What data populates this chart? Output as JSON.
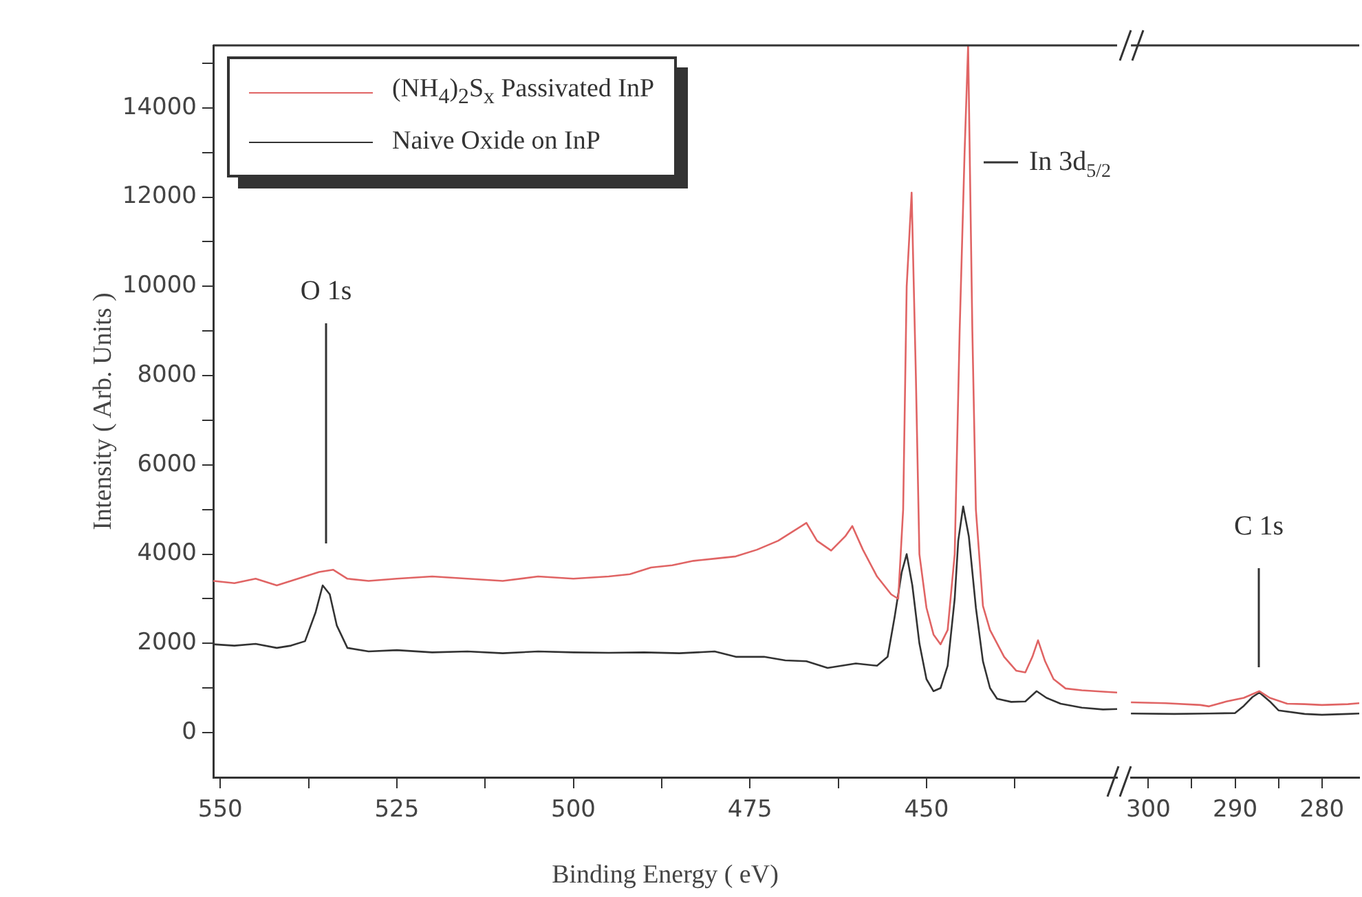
{
  "chart_data": [
    {
      "type": "line",
      "xlabel": "Binding Energy ( eV)",
      "ylabel": "Intensity ( Arb. Units )",
      "legend": "top left",
      "grid": false,
      "xlim": [
        551,
        423
      ],
      "xticks": [
        550,
        {
          "value": 537.5,
          "label": null
        },
        525,
        {
          "value": 512.5,
          "label": null
        },
        500,
        {
          "value": 487.5,
          "label": null
        },
        475,
        {
          "value": 462.5,
          "label": null
        },
        450,
        {
          "value": 437.5,
          "label": null
        }
      ],
      "ylim": [
        -1000,
        15400
      ],
      "yticks": [
        0,
        {
          "value": 1000,
          "label": null
        },
        2000,
        {
          "value": 3000,
          "label": null
        },
        4000,
        {
          "value": 5000,
          "label": null
        },
        6000,
        {
          "value": 7000,
          "label": null
        },
        8000,
        {
          "value": 9000,
          "label": null
        },
        10000,
        {
          "value": 11000,
          "label": null
        },
        12000,
        {
          "value": 13000,
          "label": null
        },
        14000,
        {
          "value": 15000,
          "label": null
        }
      ],
      "annotations": [
        "O 1s",
        "In 3d$_{5/2}$"
      ],
      "series": [
        {
          "name": "(NH$_{4}$)$_{2}$S$_{x}$ Passivated InP",
          "color": "#e06464",
          "x": [
            551,
            548,
            545,
            542,
            540,
            538,
            536,
            534,
            532,
            529,
            525,
            520,
            515,
            510,
            505,
            500,
            495,
            492,
            489,
            486,
            483,
            480,
            477,
            474,
            471,
            469,
            467,
            465.5,
            463.5,
            461.5,
            460.5,
            459,
            457,
            455,
            454,
            453.3,
            452.8,
            452.1,
            451.5,
            451,
            450,
            449,
            448,
            447,
            446,
            445.3,
            444.6,
            444.1,
            443.5,
            443,
            442,
            441,
            439,
            437.3,
            436,
            435,
            434.2,
            433.2,
            432,
            430.3,
            428,
            425,
            423
          ],
          "values": [
            3400,
            3350,
            3450,
            3300,
            3400,
            3500,
            3600,
            3650,
            3450,
            3400,
            3450,
            3500,
            3450,
            3400,
            3500,
            3450,
            3500,
            3550,
            3700,
            3750,
            3850,
            3900,
            3950,
            4100,
            4300,
            4500,
            4700,
            4300,
            4080,
            4400,
            4630,
            4100,
            3500,
            3100,
            3000,
            5000,
            10000,
            12100,
            8000,
            4000,
            2800,
            2200,
            1980,
            2300,
            4000,
            9000,
            13000,
            15400,
            9000,
            5000,
            2840,
            2300,
            1700,
            1390,
            1350,
            1700,
            2070,
            1600,
            1200,
            990,
            950,
            920,
            900
          ]
        },
        {
          "name": "Naive Oxide on InP",
          "color": "#333333",
          "x": [
            551,
            548,
            545,
            542,
            540,
            538,
            536.5,
            535.5,
            534.5,
            533.5,
            532,
            529,
            525,
            520,
            515,
            510,
            505,
            500,
            495,
            490,
            485,
            480,
            477,
            473,
            470,
            467,
            464,
            460,
            457,
            455.5,
            454.5,
            453.5,
            452.8,
            452,
            451,
            450,
            449,
            448,
            447,
            446,
            445.5,
            444.8,
            444,
            443,
            442,
            441,
            440,
            438,
            436,
            434.4,
            433,
            431,
            428,
            425,
            423
          ],
          "values": [
            1980,
            1950,
            1990,
            1900,
            1950,
            2050,
            2700,
            3300,
            3100,
            2400,
            1900,
            1820,
            1850,
            1800,
            1820,
            1780,
            1820,
            1800,
            1790,
            1800,
            1780,
            1820,
            1700,
            1700,
            1620,
            1600,
            1450,
            1550,
            1500,
            1700,
            2600,
            3600,
            4000,
            3300,
            2000,
            1200,
            930,
            1000,
            1500,
            3000,
            4300,
            5070,
            4400,
            2800,
            1600,
            1000,
            760,
            690,
            700,
            930,
            780,
            650,
            560,
            520,
            530
          ]
        }
      ]
    },
    {
      "type": "line",
      "tick_labels": "x",
      "grid": false,
      "xlim": [
        302,
        275.7
      ],
      "xticks": [
        300,
        {
          "value": 295,
          "label": null
        },
        290,
        {
          "value": 285,
          "label": null
        },
        280
      ],
      "ylim": [
        -1000,
        15400
      ],
      "annotations": [
        "C 1s"
      ],
      "series": [
        {
          "color": "#e06464",
          "x": [
            302,
            298,
            294,
            293,
            291,
            289,
            287.2,
            286,
            284,
            282,
            280,
            277,
            275.7
          ],
          "values": [
            680,
            660,
            620,
            590,
            700,
            780,
            930,
            780,
            650,
            640,
            620,
            640,
            660
          ]
        },
        {
          "color": "#333333",
          "x": [
            302,
            297,
            293,
            290,
            289,
            288,
            287.2,
            286,
            285,
            282,
            280,
            277,
            275.7
          ],
          "values": [
            430,
            420,
            430,
            440,
            600,
            800,
            900,
            700,
            500,
            420,
            400,
            420,
            430
          ]
        }
      ]
    }
  ]
}
